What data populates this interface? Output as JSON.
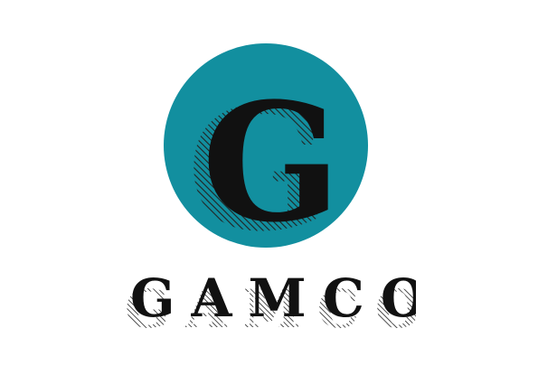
{
  "logo": {
    "monogram": "G",
    "wordmark": "GAMCO",
    "colors": {
      "circle": "#128f9f",
      "letter": "#111111",
      "shadow_hatch": "#222222",
      "background": "#ffffff"
    }
  }
}
